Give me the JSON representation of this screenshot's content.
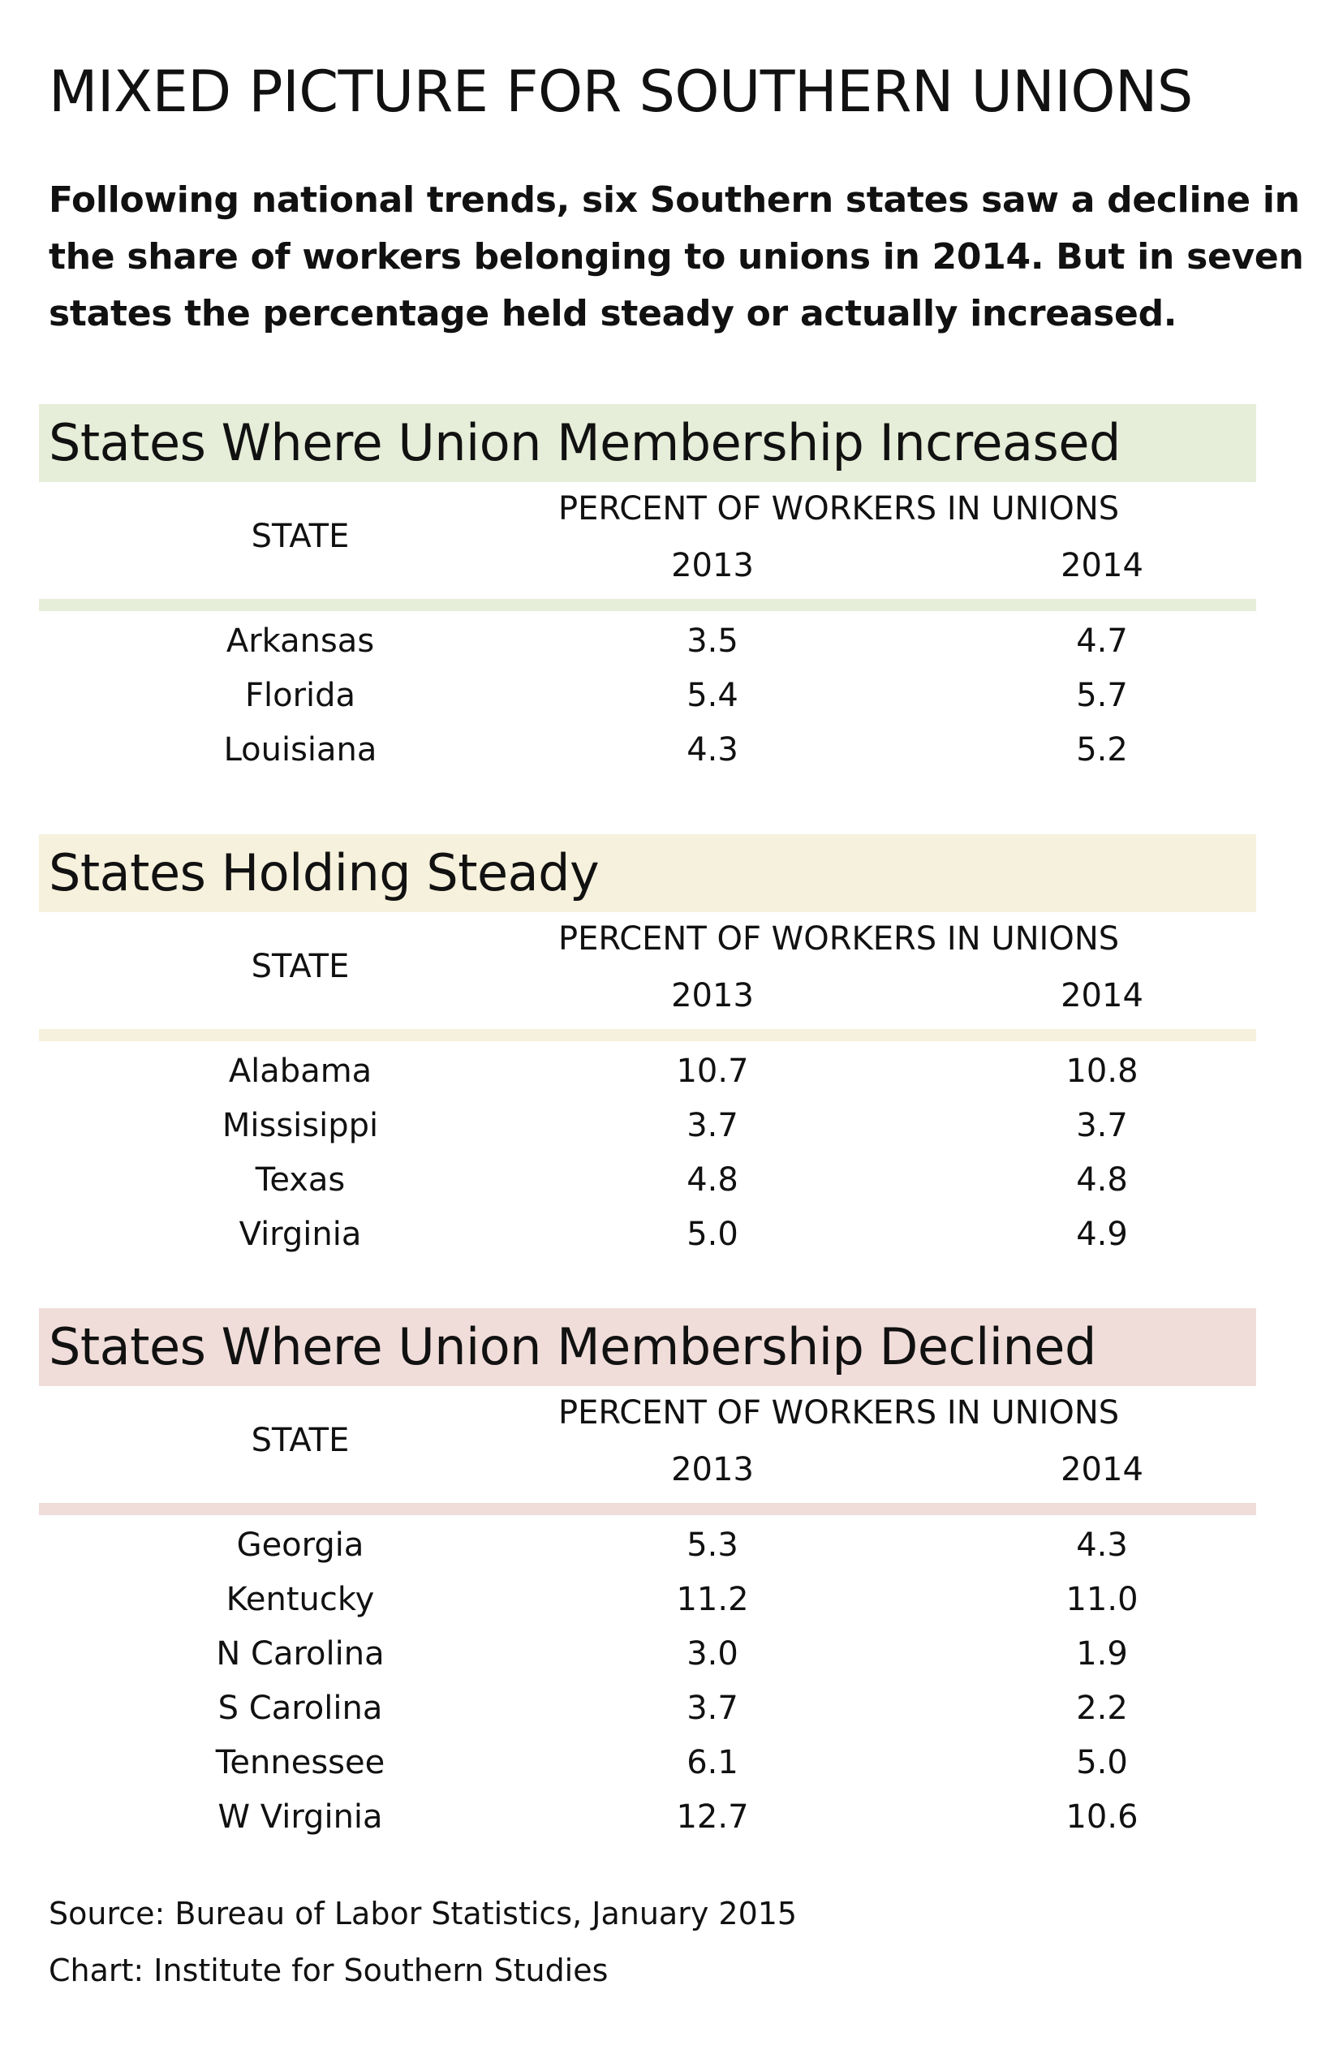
{
  "title": "MIXED PICTURE FOR SOUTHERN UNIONS",
  "intro": "Following national trends, six Southern states saw a decline in the share of workers belonging to unions in 2014. But in seven states the percentage held steady or actually increased.",
  "column_headers": {
    "state": "STATE",
    "percent": "PERCENT OF WORKERS IN UNIONS",
    "year1": "2013",
    "year2": "2014"
  },
  "colors": {
    "increased": "#e6edd8",
    "steady": "#f6f1dc",
    "declined": "#f0ddd9"
  },
  "footer": {
    "source": "Source: Bureau of Labor Statistics, January 2015",
    "chart": "Chart: Institute for Southern Studies"
  },
  "chart_data": {
    "type": "table",
    "columns": [
      "STATE",
      "2013",
      "2014"
    ],
    "groups": [
      {
        "name": "States Where Union Membership Increased",
        "rows": [
          {
            "state": "Arkansas",
            "y2013": "3.5",
            "y2014": "4.7"
          },
          {
            "state": "Florida",
            "y2013": "5.4",
            "y2014": "5.7"
          },
          {
            "state": "Louisiana",
            "y2013": "4.3",
            "y2014": "5.2"
          }
        ]
      },
      {
        "name": "States Holding Steady",
        "rows": [
          {
            "state": "Alabama",
            "y2013": "10.7",
            "y2014": "10.8"
          },
          {
            "state": "Missisippi",
            "y2013": "3.7",
            "y2014": "3.7"
          },
          {
            "state": "Texas",
            "y2013": "4.8",
            "y2014": "4.8"
          },
          {
            "state": "Virginia",
            "y2013": "5.0",
            "y2014": "4.9"
          }
        ]
      },
      {
        "name": "States Where Union Membership Declined",
        "rows": [
          {
            "state": "Georgia",
            "y2013": "5.3",
            "y2014": "4.3"
          },
          {
            "state": "Kentucky",
            "y2013": "11.2",
            "y2014": "11.0"
          },
          {
            "state": "N Carolina",
            "y2013": "3.0",
            "y2014": "1.9"
          },
          {
            "state": "S Carolina",
            "y2013": "3.7",
            "y2014": "2.2"
          },
          {
            "state": "Tennessee",
            "y2013": "6.1",
            "y2014": "5.0"
          },
          {
            "state": "W Virginia",
            "y2013": "12.7",
            "y2014": "10.6"
          }
        ]
      }
    ]
  }
}
